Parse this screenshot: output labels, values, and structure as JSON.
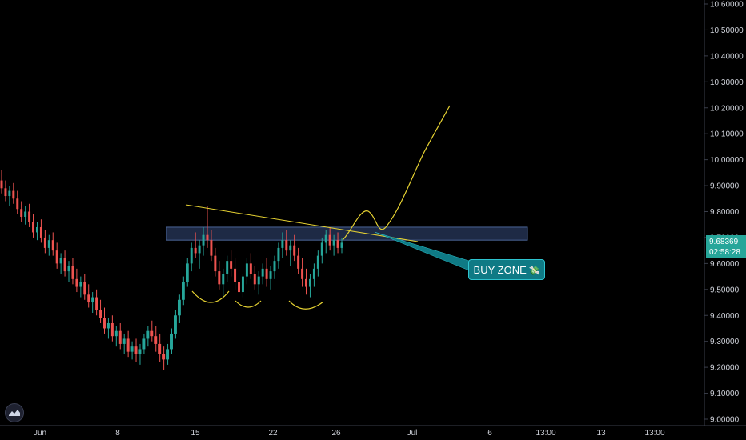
{
  "chart_data": {
    "type": "candlestick",
    "y_axis": {
      "ticks": [
        "10.60000",
        "10.50000",
        "10.40000",
        "10.30000",
        "10.20000",
        "10.10000",
        "10.00000",
        "9.90000",
        "9.80000",
        "9.70000",
        "9.60000",
        "9.50000",
        "9.40000",
        "9.30000",
        "9.20000",
        "9.10000",
        "9.00000"
      ],
      "ylim": [
        9.0,
        10.6
      ],
      "position": "right"
    },
    "x_axis": {
      "ticks": [
        "Jun",
        "8",
        "15",
        "22",
        "26",
        "Jul",
        "6",
        "13:00",
        "13",
        "13:00"
      ]
    },
    "current_price": {
      "value": "9.68369",
      "countdown": "02:58:28",
      "color": "#26a69a"
    },
    "annotations": {
      "buy_zone_label": "BUY ZONE",
      "buy_zone_emoji": "💸",
      "zone_range": [
        9.69,
        9.74
      ],
      "zone_color": "#1e2a45",
      "trendline_color": "#e6d232",
      "callout_color": "#0f7a85"
    },
    "colors": {
      "up": "#26a69a",
      "down": "#ef5350",
      "background": "#000000"
    },
    "candles": [
      [
        9.92,
        9.96,
        9.87,
        9.89
      ],
      [
        9.89,
        9.92,
        9.84,
        9.86
      ],
      [
        9.86,
        9.9,
        9.82,
        9.88
      ],
      [
        9.88,
        9.91,
        9.83,
        9.85
      ],
      [
        9.85,
        9.88,
        9.79,
        9.81
      ],
      [
        9.81,
        9.84,
        9.76,
        9.78
      ],
      [
        9.78,
        9.82,
        9.75,
        9.8
      ],
      [
        9.8,
        9.83,
        9.74,
        9.76
      ],
      [
        9.76,
        9.79,
        9.7,
        9.72
      ],
      [
        9.72,
        9.76,
        9.69,
        9.74
      ],
      [
        9.74,
        9.77,
        9.68,
        9.7
      ],
      [
        9.7,
        9.73,
        9.64,
        9.66
      ],
      [
        9.66,
        9.71,
        9.63,
        9.69
      ],
      [
        9.69,
        9.72,
        9.63,
        9.65
      ],
      [
        9.65,
        9.68,
        9.58,
        9.6
      ],
      [
        9.6,
        9.64,
        9.56,
        9.62
      ],
      [
        9.62,
        9.65,
        9.55,
        9.57
      ],
      [
        9.57,
        9.61,
        9.53,
        9.59
      ],
      [
        9.59,
        9.62,
        9.52,
        9.54
      ],
      [
        9.54,
        9.58,
        9.49,
        9.51
      ],
      [
        9.51,
        9.55,
        9.47,
        9.53
      ],
      [
        9.53,
        9.56,
        9.46,
        9.48
      ],
      [
        9.48,
        9.52,
        9.43,
        9.45
      ],
      [
        9.45,
        9.49,
        9.41,
        9.47
      ],
      [
        9.47,
        9.5,
        9.4,
        9.42
      ],
      [
        9.42,
        9.46,
        9.37,
        9.39
      ],
      [
        9.39,
        9.43,
        9.33,
        9.35
      ],
      [
        9.35,
        9.39,
        9.31,
        9.37
      ],
      [
        9.37,
        9.4,
        9.3,
        9.32
      ],
      [
        9.32,
        9.36,
        9.28,
        9.34
      ],
      [
        9.34,
        9.37,
        9.27,
        9.29
      ],
      [
        9.29,
        9.33,
        9.25,
        9.31
      ],
      [
        9.31,
        9.34,
        9.24,
        9.26
      ],
      [
        9.26,
        9.3,
        9.23,
        9.28
      ],
      [
        9.28,
        9.31,
        9.22,
        9.25
      ],
      [
        9.25,
        9.29,
        9.21,
        9.27
      ],
      [
        9.27,
        9.33,
        9.25,
        9.31
      ],
      [
        9.31,
        9.36,
        9.28,
        9.34
      ],
      [
        9.34,
        9.38,
        9.3,
        9.32
      ],
      [
        9.32,
        9.36,
        9.26,
        9.29
      ],
      [
        9.29,
        9.33,
        9.22,
        9.25
      ],
      [
        9.25,
        9.28,
        9.19,
        9.23
      ],
      [
        9.23,
        9.29,
        9.21,
        9.27
      ],
      [
        9.27,
        9.35,
        9.25,
        9.33
      ],
      [
        9.33,
        9.42,
        9.31,
        9.4
      ],
      [
        9.4,
        9.48,
        9.37,
        9.46
      ],
      [
        9.46,
        9.55,
        9.44,
        9.53
      ],
      [
        9.53,
        9.62,
        9.51,
        9.6
      ],
      [
        9.6,
        9.68,
        9.57,
        9.66
      ],
      [
        9.66,
        9.72,
        9.62,
        9.64
      ],
      [
        9.64,
        9.69,
        9.58,
        9.67
      ],
      [
        9.67,
        9.74,
        9.63,
        9.71
      ],
      [
        9.71,
        9.82,
        9.66,
        9.69
      ],
      [
        9.69,
        9.73,
        9.61,
        9.63
      ],
      [
        9.63,
        9.66,
        9.55,
        9.57
      ],
      [
        9.57,
        9.61,
        9.5,
        9.52
      ],
      [
        9.52,
        9.58,
        9.47,
        9.56
      ],
      [
        9.56,
        9.63,
        9.53,
        9.61
      ],
      [
        9.61,
        9.65,
        9.55,
        9.58
      ],
      [
        9.58,
        9.62,
        9.5,
        9.53
      ],
      [
        9.53,
        9.57,
        9.46,
        9.49
      ],
      [
        9.49,
        9.56,
        9.47,
        9.55
      ],
      [
        9.55,
        9.62,
        9.52,
        9.6
      ],
      [
        9.6,
        9.64,
        9.54,
        9.56
      ],
      [
        9.56,
        9.59,
        9.5,
        9.52
      ],
      [
        9.52,
        9.57,
        9.48,
        9.55
      ],
      [
        9.55,
        9.6,
        9.52,
        9.58
      ],
      [
        9.58,
        9.62,
        9.51,
        9.54
      ],
      [
        9.54,
        9.59,
        9.5,
        9.57
      ],
      [
        9.57,
        9.63,
        9.54,
        9.61
      ],
      [
        9.61,
        9.68,
        9.58,
        9.66
      ],
      [
        9.66,
        9.72,
        9.62,
        9.69
      ],
      [
        9.69,
        9.73,
        9.63,
        9.65
      ],
      [
        9.65,
        9.69,
        9.59,
        9.67
      ],
      [
        9.67,
        9.71,
        9.61,
        9.63
      ],
      [
        9.63,
        9.66,
        9.56,
        9.58
      ],
      [
        9.58,
        9.62,
        9.51,
        9.54
      ],
      [
        9.54,
        9.58,
        9.48,
        9.51
      ],
      [
        9.51,
        9.56,
        9.47,
        9.54
      ],
      [
        9.54,
        9.6,
        9.51,
        9.58
      ],
      [
        9.58,
        9.65,
        9.55,
        9.63
      ],
      [
        9.63,
        9.7,
        9.6,
        9.68
      ],
      [
        9.68,
        9.73,
        9.64,
        9.71
      ],
      [
        9.71,
        9.74,
        9.65,
        9.67
      ],
      [
        9.67,
        9.71,
        9.63,
        9.69
      ],
      [
        9.69,
        9.72,
        9.64,
        9.66
      ],
      [
        9.66,
        9.7,
        9.64,
        9.68
      ]
    ]
  }
}
